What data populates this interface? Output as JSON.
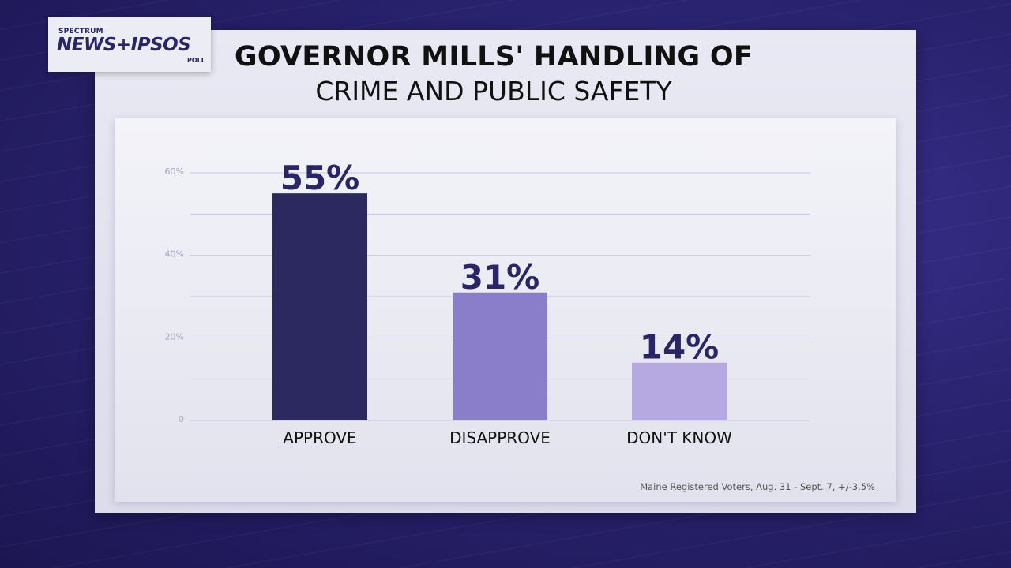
{
  "branding": {
    "small": "SPECTRUM",
    "main": "NEWS+IPSOS",
    "sub": "POLL"
  },
  "title_line1": "GOVERNOR MILLS' HANDLING OF",
  "title_line2": "CRIME AND PUBLIC SAFETY",
  "source_note": "Maine Registered Voters, Aug. 31 - Sept. 7, +/-3.5%",
  "chart_data": {
    "type": "bar",
    "categories": [
      "APPROVE",
      "DISAPPROVE",
      "DON'T KNOW"
    ],
    "values": [
      55,
      31,
      14
    ],
    "value_labels": [
      "55%",
      "31%",
      "14%"
    ],
    "ylim": [
      0,
      60
    ],
    "yticks": [
      0,
      20,
      40,
      60
    ],
    "ytick_labels": [
      "0",
      "20%",
      "40%",
      "60%"
    ],
    "grid": true,
    "colors": [
      "#2c2960",
      "#8a7ecb",
      "#b6a9e2"
    ]
  }
}
